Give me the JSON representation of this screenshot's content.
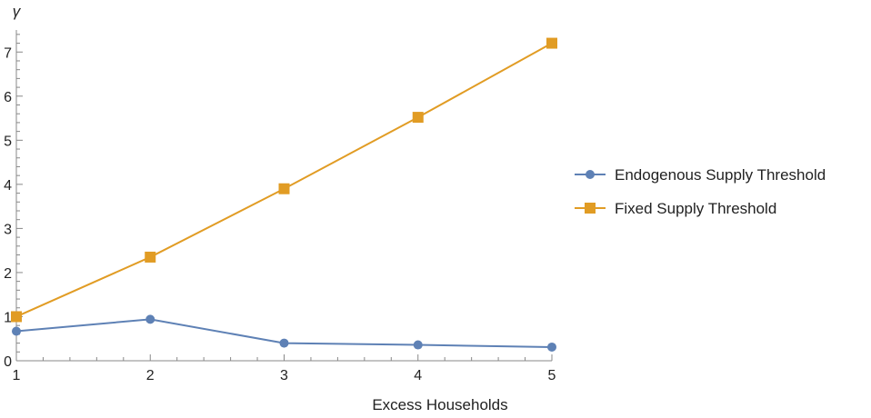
{
  "chart_data": {
    "type": "line",
    "title": "",
    "xlabel": "Excess Households",
    "ylabel": "γ",
    "xlim": [
      1,
      5
    ],
    "ylim": [
      0,
      7.5
    ],
    "x_ticks": [
      1,
      2,
      3,
      4,
      5
    ],
    "y_ticks": [
      0,
      1,
      2,
      3,
      4,
      5,
      6,
      7
    ],
    "grid": false,
    "legend_position": "right",
    "x": [
      1,
      2,
      3,
      4,
      5
    ],
    "series": [
      {
        "name": "Endogenous Supply Threshold",
        "values": [
          0.67,
          0.94,
          0.4,
          0.36,
          0.31
        ],
        "color": "#5e81b5",
        "marker": "circle"
      },
      {
        "name": "Fixed Supply Threshold",
        "values": [
          1.0,
          2.35,
          3.9,
          5.52,
          7.2
        ],
        "color": "#e19c24",
        "marker": "square"
      }
    ]
  }
}
